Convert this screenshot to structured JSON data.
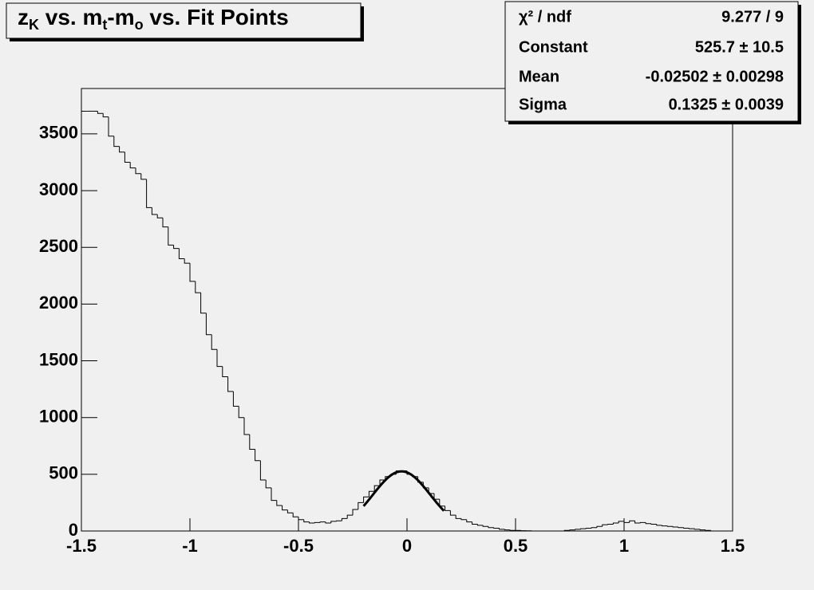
{
  "chart_data": {
    "type": "histogram",
    "title": [
      "z",
      "K",
      " vs. m",
      "t",
      "-m",
      "o",
      " vs. Fit Points"
    ],
    "bins": [
      -1.5,
      -1.475,
      -1.45,
      -1.425,
      -1.4,
      -1.375,
      -1.35,
      -1.325,
      -1.3,
      -1.275,
      -1.25,
      -1.225,
      -1.2,
      -1.175,
      -1.15,
      -1.125,
      -1.1,
      -1.075,
      -1.05,
      -1.025,
      -1,
      -0.975,
      -0.95,
      -0.925,
      -0.9,
      -0.875,
      -0.85,
      -0.825,
      -0.8,
      -0.775,
      -0.75,
      -0.725,
      -0.7,
      -0.675,
      -0.65,
      -0.625,
      -0.6,
      -0.575,
      -0.55,
      -0.525,
      -0.5,
      -0.475,
      -0.45,
      -0.425,
      -0.4,
      -0.375,
      -0.35,
      -0.325,
      -0.3,
      -0.275,
      -0.25,
      -0.225,
      -0.2,
      -0.175,
      -0.15,
      -0.125,
      -0.1,
      -0.075,
      -0.05,
      -0.025,
      0,
      0.025,
      0.05,
      0.075,
      0.1,
      0.125,
      0.15,
      0.175,
      0.2,
      0.225,
      0.25,
      0.275,
      0.3,
      0.325,
      0.35,
      0.375,
      0.4,
      0.425,
      0.45,
      0.475,
      0.5,
      0.525,
      0.55,
      0.575,
      0.6,
      0.625,
      0.65,
      0.675,
      0.7,
      0.725,
      0.75,
      0.775,
      0.8,
      0.825,
      0.85,
      0.875,
      0.9,
      0.925,
      0.95,
      0.975,
      1,
      1.025,
      1.05,
      1.075,
      1.1,
      1.125,
      1.15,
      1.175,
      1.2,
      1.225,
      1.25,
      1.275,
      1.3,
      1.325,
      1.35,
      1.375,
      1.4,
      1.425,
      1.45,
      1.475,
      1.5
    ],
    "values": [
      3700,
      3700,
      3700,
      3680,
      3650,
      3480,
      3390,
      3340,
      3250,
      3200,
      3150,
      3100,
      2850,
      2790,
      2760,
      2680,
      2520,
      2490,
      2400,
      2360,
      2200,
      2100,
      1920,
      1730,
      1600,
      1450,
      1360,
      1230,
      1100,
      1000,
      850,
      720,
      620,
      450,
      380,
      270,
      225,
      185,
      160,
      125,
      100,
      80,
      70,
      75,
      80,
      70,
      85,
      90,
      110,
      140,
      190,
      250,
      300,
      350,
      400,
      450,
      480,
      500,
      530,
      530,
      500,
      480,
      430,
      380,
      330,
      280,
      220,
      180,
      140,
      110,
      100,
      80,
      60,
      50,
      40,
      30,
      25,
      15,
      10,
      5,
      5,
      3,
      2,
      0,
      0,
      0,
      0,
      0,
      0,
      5,
      10,
      15,
      20,
      25,
      30,
      40,
      55,
      60,
      70,
      85,
      75,
      90,
      70,
      75,
      65,
      60,
      50,
      45,
      40,
      35,
      30,
      25,
      20,
      15,
      10,
      5,
      0,
      0,
      0,
      0
    ],
    "color": "#000000",
    "xlim": [
      -1.5,
      1.5
    ],
    "xticks": [
      -1.5,
      -1,
      -0.5,
      0,
      0.5,
      1,
      1.5
    ],
    "ylim": [
      0,
      3900
    ],
    "yticks": [
      0,
      500,
      1000,
      1500,
      2000,
      2500,
      3000,
      3500
    ],
    "fit": {
      "constant": 525.7,
      "mean": -0.02502,
      "sigma": 0.1325,
      "xlim": [
        -0.2,
        0.17
      ]
    },
    "stats": [
      {
        "label": "χ² / ndf",
        "text": "9.277 / 9"
      },
      {
        "label": "Constant",
        "text": "525.7 ± 10.5"
      },
      {
        "label": "Mean",
        "text": "-0.02502 ± 0.00298"
      },
      {
        "label": "Sigma",
        "text": "0.1325 ± 0.0039"
      }
    ]
  }
}
